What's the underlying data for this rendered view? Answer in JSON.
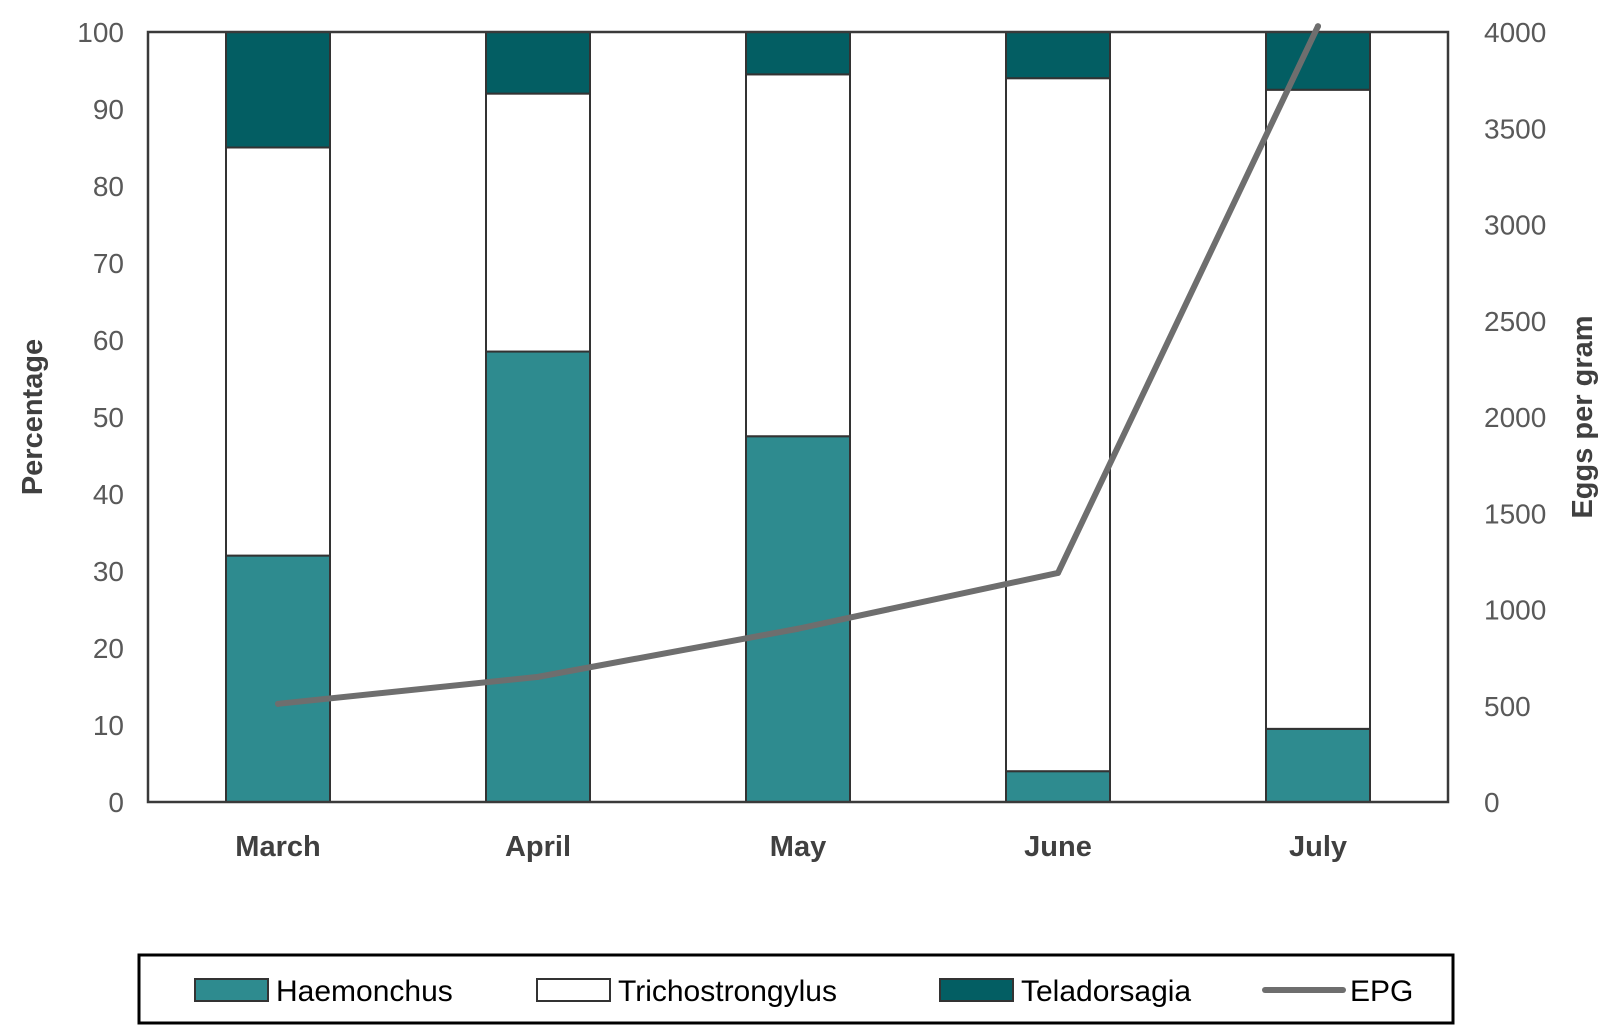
{
  "chart_data": {
    "type": "bar",
    "subtype": "stacked-bar-with-line-secondary-axis",
    "categories": [
      "March",
      "April",
      "May",
      "June",
      "July"
    ],
    "series": [
      {
        "name": "Haemonchus",
        "type": "bar",
        "axis": "left",
        "color": "#2e8b8f",
        "values": [
          32,
          58.5,
          47.5,
          4,
          9.5
        ]
      },
      {
        "name": "Trichostrongylus",
        "type": "bar",
        "axis": "left",
        "color": "#ffffff",
        "values": [
          53,
          33.5,
          47,
          90,
          83
        ]
      },
      {
        "name": "Teladorsagia",
        "type": "bar",
        "axis": "left",
        "color": "#035e63",
        "values": [
          15,
          8,
          5.5,
          6,
          7.5
        ]
      },
      {
        "name": "EPG",
        "type": "line",
        "axis": "right",
        "color": "#6e6e6e",
        "values": [
          510,
          650,
          900,
          1190,
          4030
        ]
      }
    ],
    "xlabel": "",
    "ylabel": "Percentage",
    "y2label": "Eggs per gram",
    "ylim": [
      0,
      100
    ],
    "y2lim": [
      0,
      4000
    ],
    "yticks": [
      "0",
      "10",
      "20",
      "30",
      "40",
      "50",
      "60",
      "70",
      "80",
      "90",
      "100"
    ],
    "y2ticks": [
      "0",
      "500",
      "1000",
      "1500",
      "2000",
      "2500",
      "3000",
      "3500",
      "4000"
    ],
    "grid": false,
    "legend_position": "bottom",
    "legend": [
      "Haemonchus",
      "Trichostrongylus",
      "Teladorsagia",
      "EPG"
    ]
  }
}
